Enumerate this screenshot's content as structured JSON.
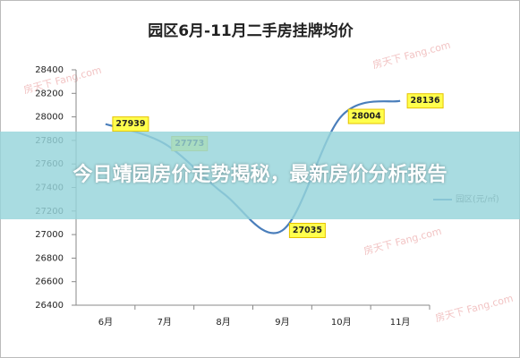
{
  "chart_data": {
    "type": "line",
    "title": "园区6月-11月二手房挂牌均价",
    "categories": [
      "6月",
      "7月",
      "8月",
      "9月",
      "10月",
      "11月"
    ],
    "series": [
      {
        "name": "园区(元/㎡)",
        "color": "#4a7ebb",
        "values": [
          27939,
          27773,
          27350,
          27035,
          28004,
          28136
        ],
        "value_labels": [
          "27939",
          "27773",
          null,
          "27035",
          "28004",
          "28136"
        ]
      }
    ],
    "ylim": [
      26400,
      28400
    ],
    "yticks": [
      26400,
      26600,
      26800,
      27000,
      27200,
      27400,
      27600,
      27800,
      28000,
      28200,
      28400
    ],
    "grid": false,
    "legend": "right",
    "watermark": "房天下 Fang.com"
  },
  "banner": "今日靖园房价走势揭秘，最新房价分析报告"
}
